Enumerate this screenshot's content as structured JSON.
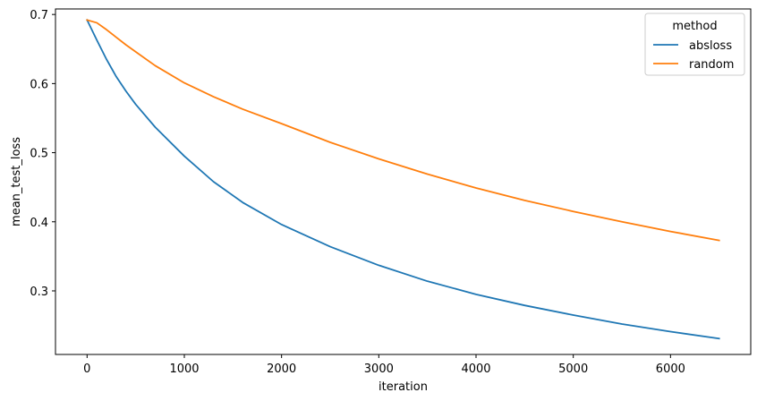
{
  "chart_data": {
    "type": "line",
    "title": "",
    "xlabel": "iteration",
    "ylabel": "mean_test_loss",
    "xlim": [
      -325,
      6825
    ],
    "ylim": [
      0.208,
      0.708
    ],
    "xticks": [
      0,
      1000,
      2000,
      3000,
      4000,
      5000,
      6000
    ],
    "yticks": [
      0.3,
      0.4,
      0.5,
      0.6,
      0.7
    ],
    "ytick_labels": [
      "0.3",
      "0.4",
      "0.5",
      "0.6",
      "0.7"
    ],
    "grid": false,
    "legend": {
      "title": "method",
      "placement": "top-right"
    },
    "x": [
      0,
      100,
      200,
      300,
      400,
      500,
      700,
      1000,
      1300,
      1600,
      2000,
      2500,
      3000,
      3500,
      4000,
      4500,
      5000,
      5500,
      6000,
      6500
    ],
    "series": [
      {
        "name": "absloss",
        "color": "#1f77b4",
        "values": [
          0.692,
          0.663,
          0.635,
          0.61,
          0.589,
          0.57,
          0.537,
          0.495,
          0.458,
          0.428,
          0.396,
          0.364,
          0.337,
          0.314,
          0.295,
          0.279,
          0.265,
          0.252,
          0.241,
          0.231
        ]
      },
      {
        "name": "random",
        "color": "#ff7f0e",
        "values": [
          0.692,
          0.688,
          0.678,
          0.667,
          0.656,
          0.646,
          0.626,
          0.601,
          0.581,
          0.563,
          0.542,
          0.515,
          0.491,
          0.469,
          0.449,
          0.431,
          0.415,
          0.4,
          0.386,
          0.373
        ]
      }
    ]
  }
}
